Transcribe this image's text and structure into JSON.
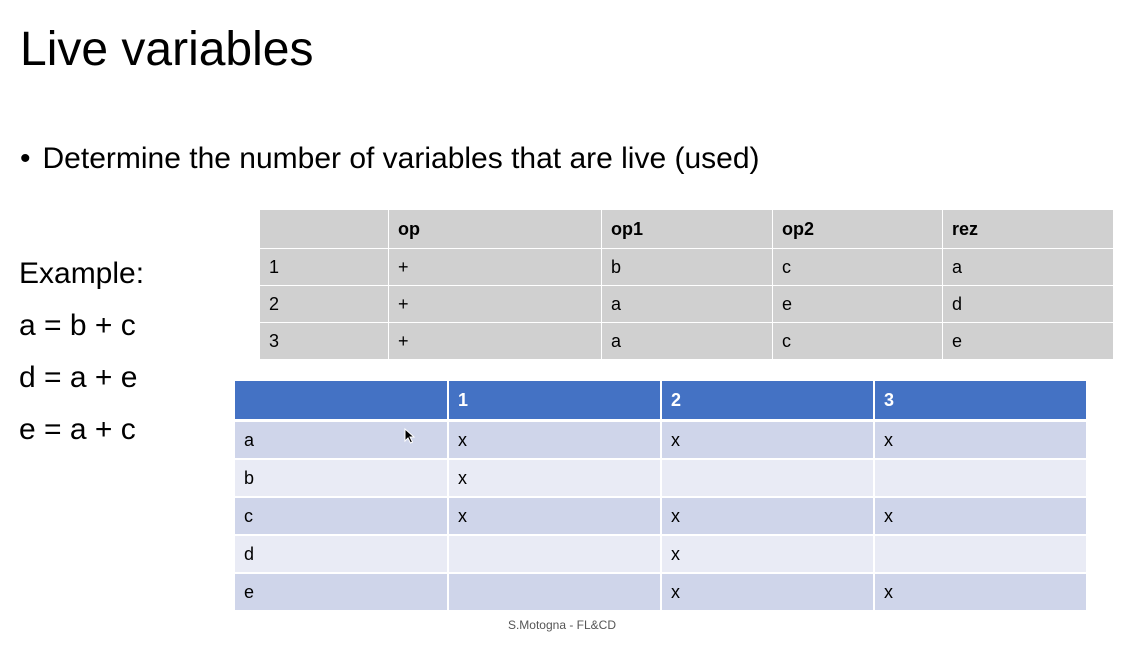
{
  "slide": {
    "title": "Live variables",
    "bullet": "Determine the number of variables that are live (used)",
    "bullet_marker": "•"
  },
  "example": {
    "label": "Example:",
    "lines": [
      "a = b + c",
      "d = a + e",
      "e = a + c"
    ]
  },
  "quadruple_table": {
    "headers": [
      "",
      "op",
      "op1",
      "op2",
      "rez"
    ],
    "rows": [
      [
        "1",
        "+",
        "b",
        "c",
        "a"
      ],
      [
        "2",
        "+",
        "a",
        "e",
        "d"
      ],
      [
        "3",
        "+",
        "a",
        "c",
        "e"
      ]
    ]
  },
  "live_table": {
    "headers": [
      "",
      "1",
      "2",
      "3"
    ],
    "rows": [
      [
        "a",
        "x",
        "x",
        "x"
      ],
      [
        "b",
        "x",
        "",
        ""
      ],
      [
        "c",
        "x",
        "x",
        "x"
      ],
      [
        "d",
        "",
        "x",
        ""
      ],
      [
        "e",
        "",
        "x",
        "x"
      ]
    ],
    "header_color": "#4472c4",
    "row_color_odd": "#cfd5ea",
    "row_color_even": "#e9ebf5"
  },
  "footer": "S.Motogna - FL&CD",
  "cursor_icon": "mouse-pointer-icon"
}
